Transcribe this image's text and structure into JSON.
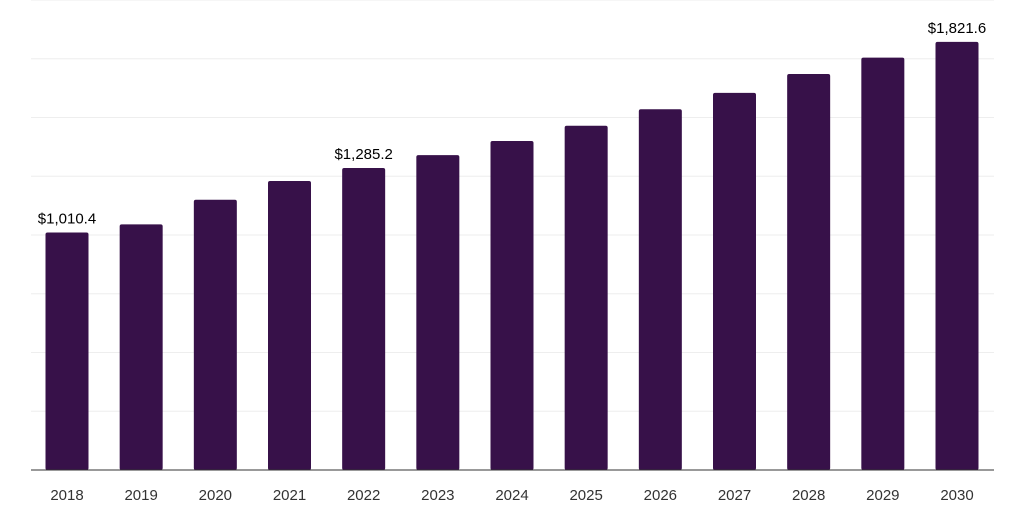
{
  "chart_data": {
    "type": "bar",
    "categories": [
      "2018",
      "2019",
      "2020",
      "2021",
      "2022",
      "2023",
      "2024",
      "2025",
      "2026",
      "2027",
      "2028",
      "2029",
      "2030"
    ],
    "values": [
      1010.4,
      1045,
      1150,
      1230,
      1285.2,
      1340,
      1400,
      1465,
      1535,
      1605,
      1685,
      1755,
      1821.6
    ],
    "data_labels": [
      "$1,010.4",
      "",
      "",
      "",
      "$1,285.2",
      "",
      "",
      "",
      "",
      "",
      "",
      "",
      "$1,821.6"
    ],
    "title": "",
    "xlabel": "",
    "ylabel": "",
    "ylim": [
      0,
      2000
    ],
    "grid": true,
    "legend": "none",
    "bar_color": "#371149",
    "grid_color": "#eeeeee",
    "axis_color": "#333333"
  }
}
